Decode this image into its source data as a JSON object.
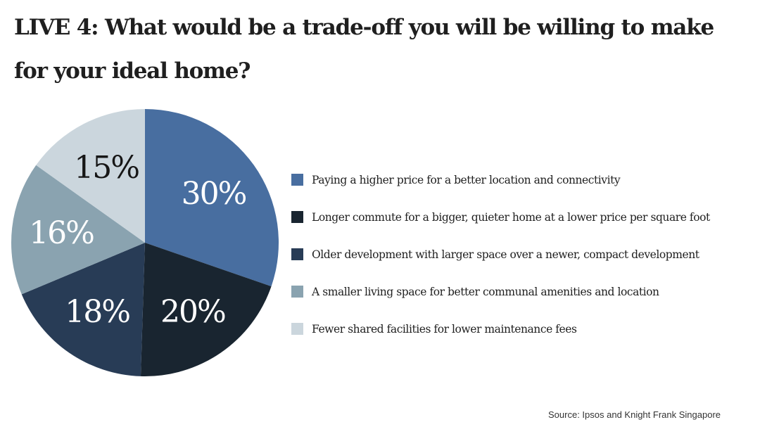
{
  "title": "LIVE 4: What would be a trade-off you will be willing to make for your ideal home?",
  "source": "Source: Ipsos and Knight Frank Singapore",
  "chart_data": {
    "type": "pie",
    "title": "LIVE 4: What would be a trade-off you will be willing to make for your ideal home?",
    "legend_position": "right",
    "slices": [
      {
        "label": "Paying a higher price for a better location and connectivity",
        "value": 30,
        "value_label": "30%",
        "color": "#486ea0",
        "text_color": "#ffffff"
      },
      {
        "label": "Longer commute for a bigger, quieter home at a lower price per square foot",
        "value": 20,
        "value_label": "20%",
        "color": "#192530",
        "text_color": "#ffffff"
      },
      {
        "label": "Older development with larger space over a newer, compact development",
        "value": 18,
        "value_label": "18%",
        "color": "#283c56",
        "text_color": "#ffffff"
      },
      {
        "label": "A smaller living space for better communal amenities and location",
        "value": 16,
        "value_label": "16%",
        "color": "#8aa3b0",
        "text_color": "#ffffff"
      },
      {
        "label": "Fewer shared facilities for lower maintenance fees",
        "value": 15,
        "value_label": "15%",
        "color": "#cbd6dd",
        "text_color": "#161616"
      }
    ]
  }
}
